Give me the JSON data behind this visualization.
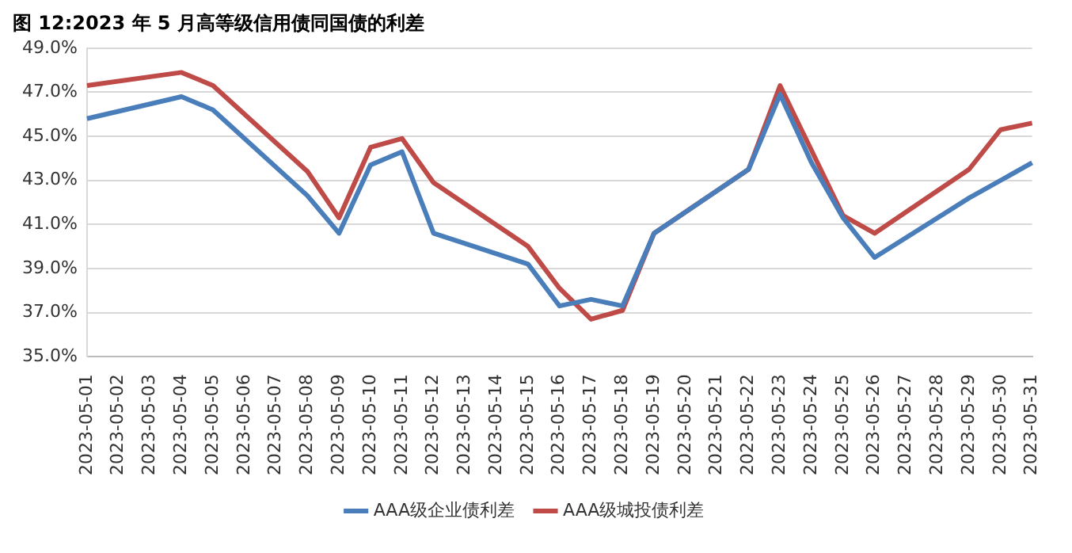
{
  "chart_data": {
    "type": "line",
    "title": "图 12:2023 年 5 月高等级信用债同国债的利差",
    "categories": [
      "2023-05-01",
      "2023-05-02",
      "2023-05-03",
      "2023-05-04",
      "2023-05-05",
      "2023-05-06",
      "2023-05-07",
      "2023-05-08",
      "2023-05-09",
      "2023-05-10",
      "2023-05-11",
      "2023-05-12",
      "2023-05-13",
      "2023-05-14",
      "2023-05-15",
      "2023-05-16",
      "2023-05-17",
      "2023-05-18",
      "2023-05-19",
      "2023-05-20",
      "2023-05-21",
      "2023-05-22",
      "2023-05-23",
      "2023-05-24",
      "2023-05-25",
      "2023-05-26",
      "2023-05-27",
      "2023-05-28",
      "2023-05-29",
      "2023-05-30",
      "2023-05-31"
    ],
    "series": [
      {
        "name": "AAA级企业债利差",
        "color": "#4a7ebb",
        "values": [
          45.8,
          null,
          null,
          46.8,
          46.2,
          null,
          null,
          42.3,
          40.6,
          43.7,
          44.3,
          40.6,
          null,
          null,
          39.2,
          37.3,
          37.6,
          37.3,
          40.6,
          null,
          null,
          43.5,
          46.9,
          43.8,
          41.3,
          39.5,
          null,
          null,
          42.2,
          null,
          43.8
        ]
      },
      {
        "name": "AAA级城投债利差",
        "color": "#be4b48",
        "values": [
          47.3,
          null,
          null,
          47.9,
          47.3,
          null,
          null,
          43.4,
          41.3,
          44.5,
          44.9,
          42.9,
          null,
          null,
          40.0,
          38.1,
          36.7,
          37.1,
          40.6,
          null,
          null,
          43.5,
          47.3,
          null,
          41.4,
          40.6,
          null,
          null,
          43.5,
          45.3,
          45.6
        ]
      }
    ],
    "ylim": [
      35,
      49
    ],
    "yticks": [
      {
        "value": 35,
        "label": "35.0%"
      },
      {
        "value": 37,
        "label": "37.0%"
      },
      {
        "value": 39,
        "label": "39.0%"
      },
      {
        "value": 41,
        "label": "41.0%"
      },
      {
        "value": 43,
        "label": "43.0%"
      },
      {
        "value": 45,
        "label": "45.0%"
      },
      {
        "value": 47,
        "label": "47.0%"
      },
      {
        "value": 49,
        "label": "49.0%"
      }
    ],
    "grid": "y",
    "legend": "bottom",
    "marker": "none",
    "line_style": "solid"
  }
}
